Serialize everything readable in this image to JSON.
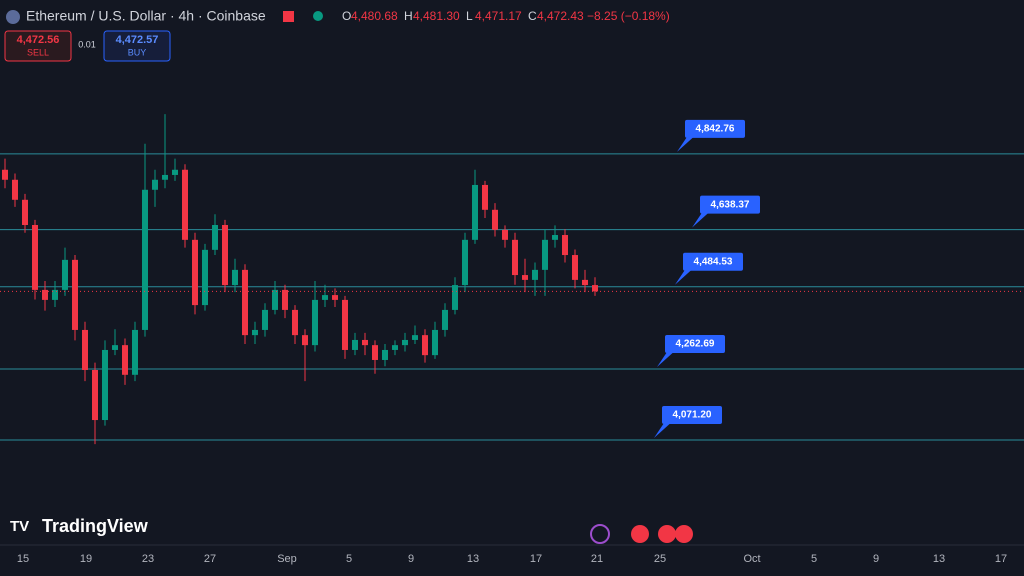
{
  "header": {
    "symbol": "Ethereum / U.S. Dollar · 4h · Coinbase",
    "ohlc": [
      {
        "key": "O",
        "value": "4,480.68"
      },
      {
        "key": "H",
        "value": "4,481.30"
      },
      {
        "key": "L",
        "value": "4,471.17"
      },
      {
        "key": "C",
        "value": "4,472.43"
      }
    ],
    "change": "−8.25 (−0.18%)"
  },
  "trade": {
    "sell_price": "4,472.56",
    "sell_label": "SELL",
    "spread": "0.01",
    "buy_price": "4,472.57",
    "buy_label": "BUY"
  },
  "brand": "TradingView",
  "chart_data": {
    "type": "candlestick",
    "ylim": [
      3788,
      5096
    ],
    "up_color": "#089981",
    "down_color": "#f23645",
    "level_color": "#2a8c9a",
    "xticks": [
      "15",
      "19",
      "23",
      "27",
      "Sep",
      "5",
      "9",
      "13",
      "17",
      "21",
      "25",
      "Oct",
      "5",
      "9",
      "13",
      "17"
    ],
    "levels": [
      {
        "value": 4842.76,
        "label": "4,842.76"
      },
      {
        "value": 4638.37,
        "label": "4,638.37"
      },
      {
        "value": 4484.53,
        "label": "4,484.53"
      },
      {
        "value": 4262.69,
        "label": "4,262.69"
      },
      {
        "value": 4071.2,
        "label": "4,071.20"
      }
    ],
    "candles": [
      [
        4800,
        4830,
        4750,
        4773
      ],
      [
        4773,
        4790,
        4700,
        4719
      ],
      [
        4719,
        4735,
        4630,
        4651
      ],
      [
        4651,
        4665,
        4450,
        4476
      ],
      [
        4476,
        4500,
        4420,
        4449
      ],
      [
        4449,
        4500,
        4430,
        4476
      ],
      [
        4476,
        4590,
        4460,
        4557
      ],
      [
        4557,
        4570,
        4340,
        4368
      ],
      [
        4368,
        4390,
        4230,
        4260
      ],
      [
        4260,
        4280,
        4060,
        4125
      ],
      [
        4125,
        4340,
        4110,
        4314
      ],
      [
        4314,
        4370,
        4300,
        4327
      ],
      [
        4327,
        4345,
        4220,
        4247
      ],
      [
        4247,
        4390,
        4230,
        4368
      ],
      [
        4368,
        4870,
        4350,
        4746
      ],
      [
        4746,
        4800,
        4700,
        4773
      ],
      [
        4773,
        4950,
        4750,
        4786
      ],
      [
        4786,
        4830,
        4770,
        4800
      ],
      [
        4800,
        4815,
        4590,
        4611
      ],
      [
        4611,
        4630,
        4410,
        4435
      ],
      [
        4435,
        4600,
        4420,
        4584
      ],
      [
        4584,
        4680,
        4570,
        4651
      ],
      [
        4651,
        4665,
        4470,
        4489
      ],
      [
        4489,
        4560,
        4470,
        4530
      ],
      [
        4530,
        4545,
        4330,
        4354
      ],
      [
        4354,
        4390,
        4330,
        4368
      ],
      [
        4368,
        4440,
        4350,
        4422
      ],
      [
        4422,
        4500,
        4410,
        4476
      ],
      [
        4476,
        4490,
        4400,
        4422
      ],
      [
        4422,
        4435,
        4330,
        4354
      ],
      [
        4354,
        4370,
        4230,
        4327
      ],
      [
        4327,
        4500,
        4310,
        4449
      ],
      [
        4449,
        4490,
        4430,
        4462
      ],
      [
        4462,
        4480,
        4430,
        4449
      ],
      [
        4449,
        4460,
        4290,
        4314
      ],
      [
        4314,
        4360,
        4300,
        4341
      ],
      [
        4341,
        4360,
        4300,
        4327
      ],
      [
        4327,
        4340,
        4250,
        4287
      ],
      [
        4287,
        4330,
        4270,
        4314
      ],
      [
        4314,
        4340,
        4300,
        4327
      ],
      [
        4327,
        4360,
        4310,
        4341
      ],
      [
        4341,
        4380,
        4330,
        4354
      ],
      [
        4354,
        4370,
        4280,
        4300
      ],
      [
        4300,
        4390,
        4290,
        4368
      ],
      [
        4368,
        4440,
        4350,
        4422
      ],
      [
        4422,
        4510,
        4410,
        4489
      ],
      [
        4489,
        4630,
        4470,
        4611
      ],
      [
        4611,
        4800,
        4600,
        4759
      ],
      [
        4759,
        4770,
        4670,
        4692
      ],
      [
        4692,
        4710,
        4620,
        4638
      ],
      [
        4638,
        4650,
        4590,
        4611
      ],
      [
        4611,
        4630,
        4490,
        4516
      ],
      [
        4516,
        4560,
        4470,
        4503
      ],
      [
        4503,
        4550,
        4460,
        4530
      ],
      [
        4530,
        4640,
        4460,
        4611
      ],
      [
        4611,
        4650,
        4590,
        4624
      ],
      [
        4624,
        4640,
        4550,
        4570
      ],
      [
        4570,
        4585,
        4480,
        4503
      ],
      [
        4503,
        4530,
        4470,
        4489
      ],
      [
        4489,
        4510,
        4460,
        4472
      ]
    ]
  }
}
